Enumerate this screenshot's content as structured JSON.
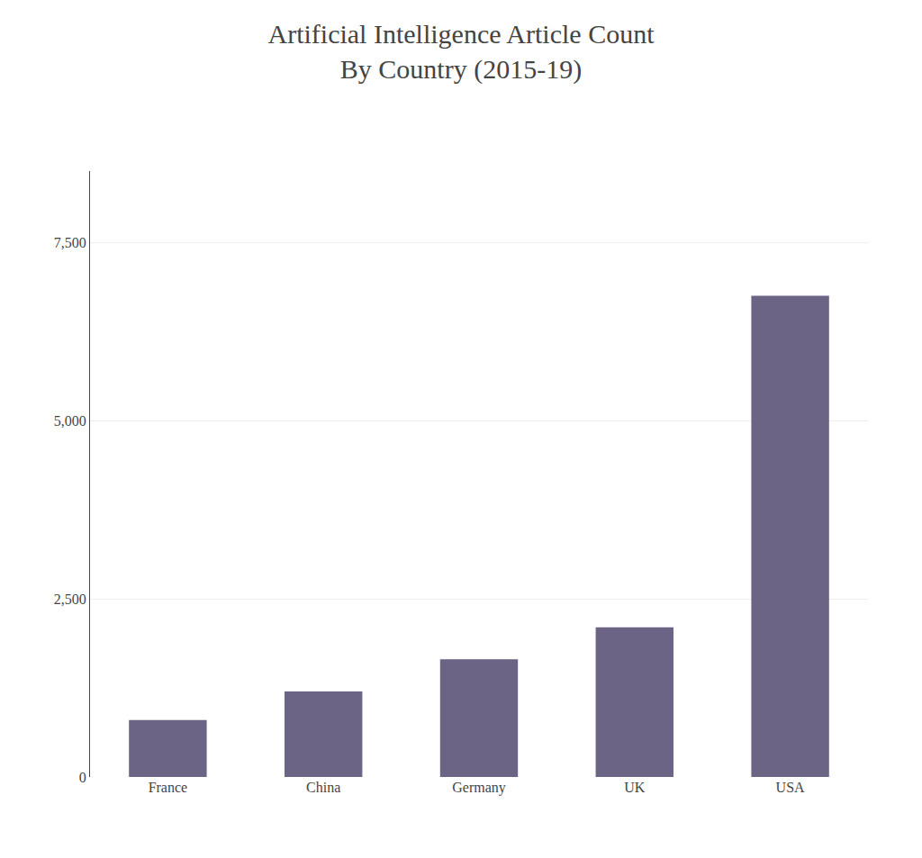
{
  "chart_data": {
    "type": "bar",
    "title": "Artificial Intelligence Article Count\nBy Country (2015-19)",
    "categories": [
      "France",
      "China",
      "Germany",
      "UK",
      "USA"
    ],
    "values": [
      800,
      1200,
      1650,
      2100,
      6750
    ],
    "color": "#6b6485",
    "ylim": [
      0,
      8500
    ],
    "yticks": [
      0,
      {
        "value": 2500,
        "label": "2,500"
      },
      {
        "value": 5000,
        "label": "5,000"
      },
      {
        "value": 7500,
        "label": "7,500"
      }
    ],
    "grid": true
  }
}
